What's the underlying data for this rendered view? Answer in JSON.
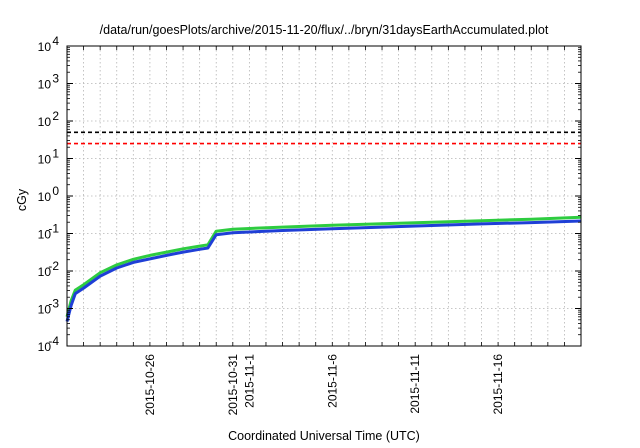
{
  "chart_data": {
    "type": "line",
    "title": "/data/run/goesPlots/archive/2015-11-20/flux/../bryn/31daysEarthAccumulated.plot",
    "xlabel": "Coordinated Universal Time (UTC)",
    "ylabel": "cGy",
    "yscale": "log",
    "ylim": [
      0.0001,
      10000
    ],
    "y_ticks": [
      {
        "base": "10",
        "exp": "-4",
        "value": 0.0001
      },
      {
        "base": "10",
        "exp": "-3",
        "value": 0.001
      },
      {
        "base": "10",
        "exp": "-2",
        "value": 0.01
      },
      {
        "base": "10",
        "exp": "-1",
        "value": 0.1
      },
      {
        "base": "10",
        "exp": "0",
        "value": 1
      },
      {
        "base": "10",
        "exp": "1",
        "value": 10
      },
      {
        "base": "10",
        "exp": "2",
        "value": 100
      },
      {
        "base": "10",
        "exp": "3",
        "value": 1000
      },
      {
        "base": "10",
        "exp": "4",
        "value": 10000
      }
    ],
    "xlim": [
      "2015-10-21",
      "2015-11-21"
    ],
    "x_ticks": [
      "2015-10-26",
      "2015-10-31",
      "2015-11-1",
      "2015-11-6",
      "2015-11-11",
      "2015-11-16"
    ],
    "x_ticks_dates": [
      "2015-10-26",
      "2015-10-31",
      "2015-11-01",
      "2015-11-06",
      "2015-11-11",
      "2015-11-16"
    ],
    "grid": true,
    "reference_lines": [
      {
        "y": 50,
        "color": "#000000",
        "style": "dashed"
      },
      {
        "y": 25,
        "color": "#ff0000",
        "style": "dashed"
      }
    ],
    "series": [
      {
        "color": "#2ecc40",
        "x": [
          "2015-10-21",
          "2015-10-21 06:00",
          "2015-10-21 12:00",
          "2015-10-22",
          "2015-10-23",
          "2015-10-24",
          "2015-10-25",
          "2015-10-26",
          "2015-10-27",
          "2015-10-28",
          "2015-10-29",
          "2015-10-29 12:00",
          "2015-10-30",
          "2015-10-31",
          "2015-11-03",
          "2015-11-06",
          "2015-11-09",
          "2015-11-12",
          "2015-11-15",
          "2015-11-18",
          "2015-11-21"
        ],
        "values": [
          0.0006,
          0.0016,
          0.0031,
          0.0043,
          0.009,
          0.0145,
          0.0205,
          0.026,
          0.032,
          0.039,
          0.046,
          0.05,
          0.115,
          0.13,
          0.148,
          0.165,
          0.183,
          0.2,
          0.22,
          0.24,
          0.27
        ]
      },
      {
        "color": "#1f3fd6",
        "x": [
          "2015-10-21",
          "2015-10-21 06:00",
          "2015-10-21 12:00",
          "2015-10-22",
          "2015-10-23",
          "2015-10-24",
          "2015-10-25",
          "2015-10-26",
          "2015-10-27",
          "2015-10-28",
          "2015-10-29",
          "2015-10-29 12:00",
          "2015-10-30",
          "2015-10-31",
          "2015-11-03",
          "2015-11-06",
          "2015-11-09",
          "2015-11-12",
          "2015-11-15",
          "2015-11-18",
          "2015-11-21"
        ],
        "values": [
          0.00045,
          0.0012,
          0.0025,
          0.0035,
          0.0073,
          0.012,
          0.017,
          0.021,
          0.026,
          0.032,
          0.038,
          0.041,
          0.093,
          0.105,
          0.12,
          0.134,
          0.148,
          0.163,
          0.18,
          0.195,
          0.215
        ]
      }
    ]
  }
}
